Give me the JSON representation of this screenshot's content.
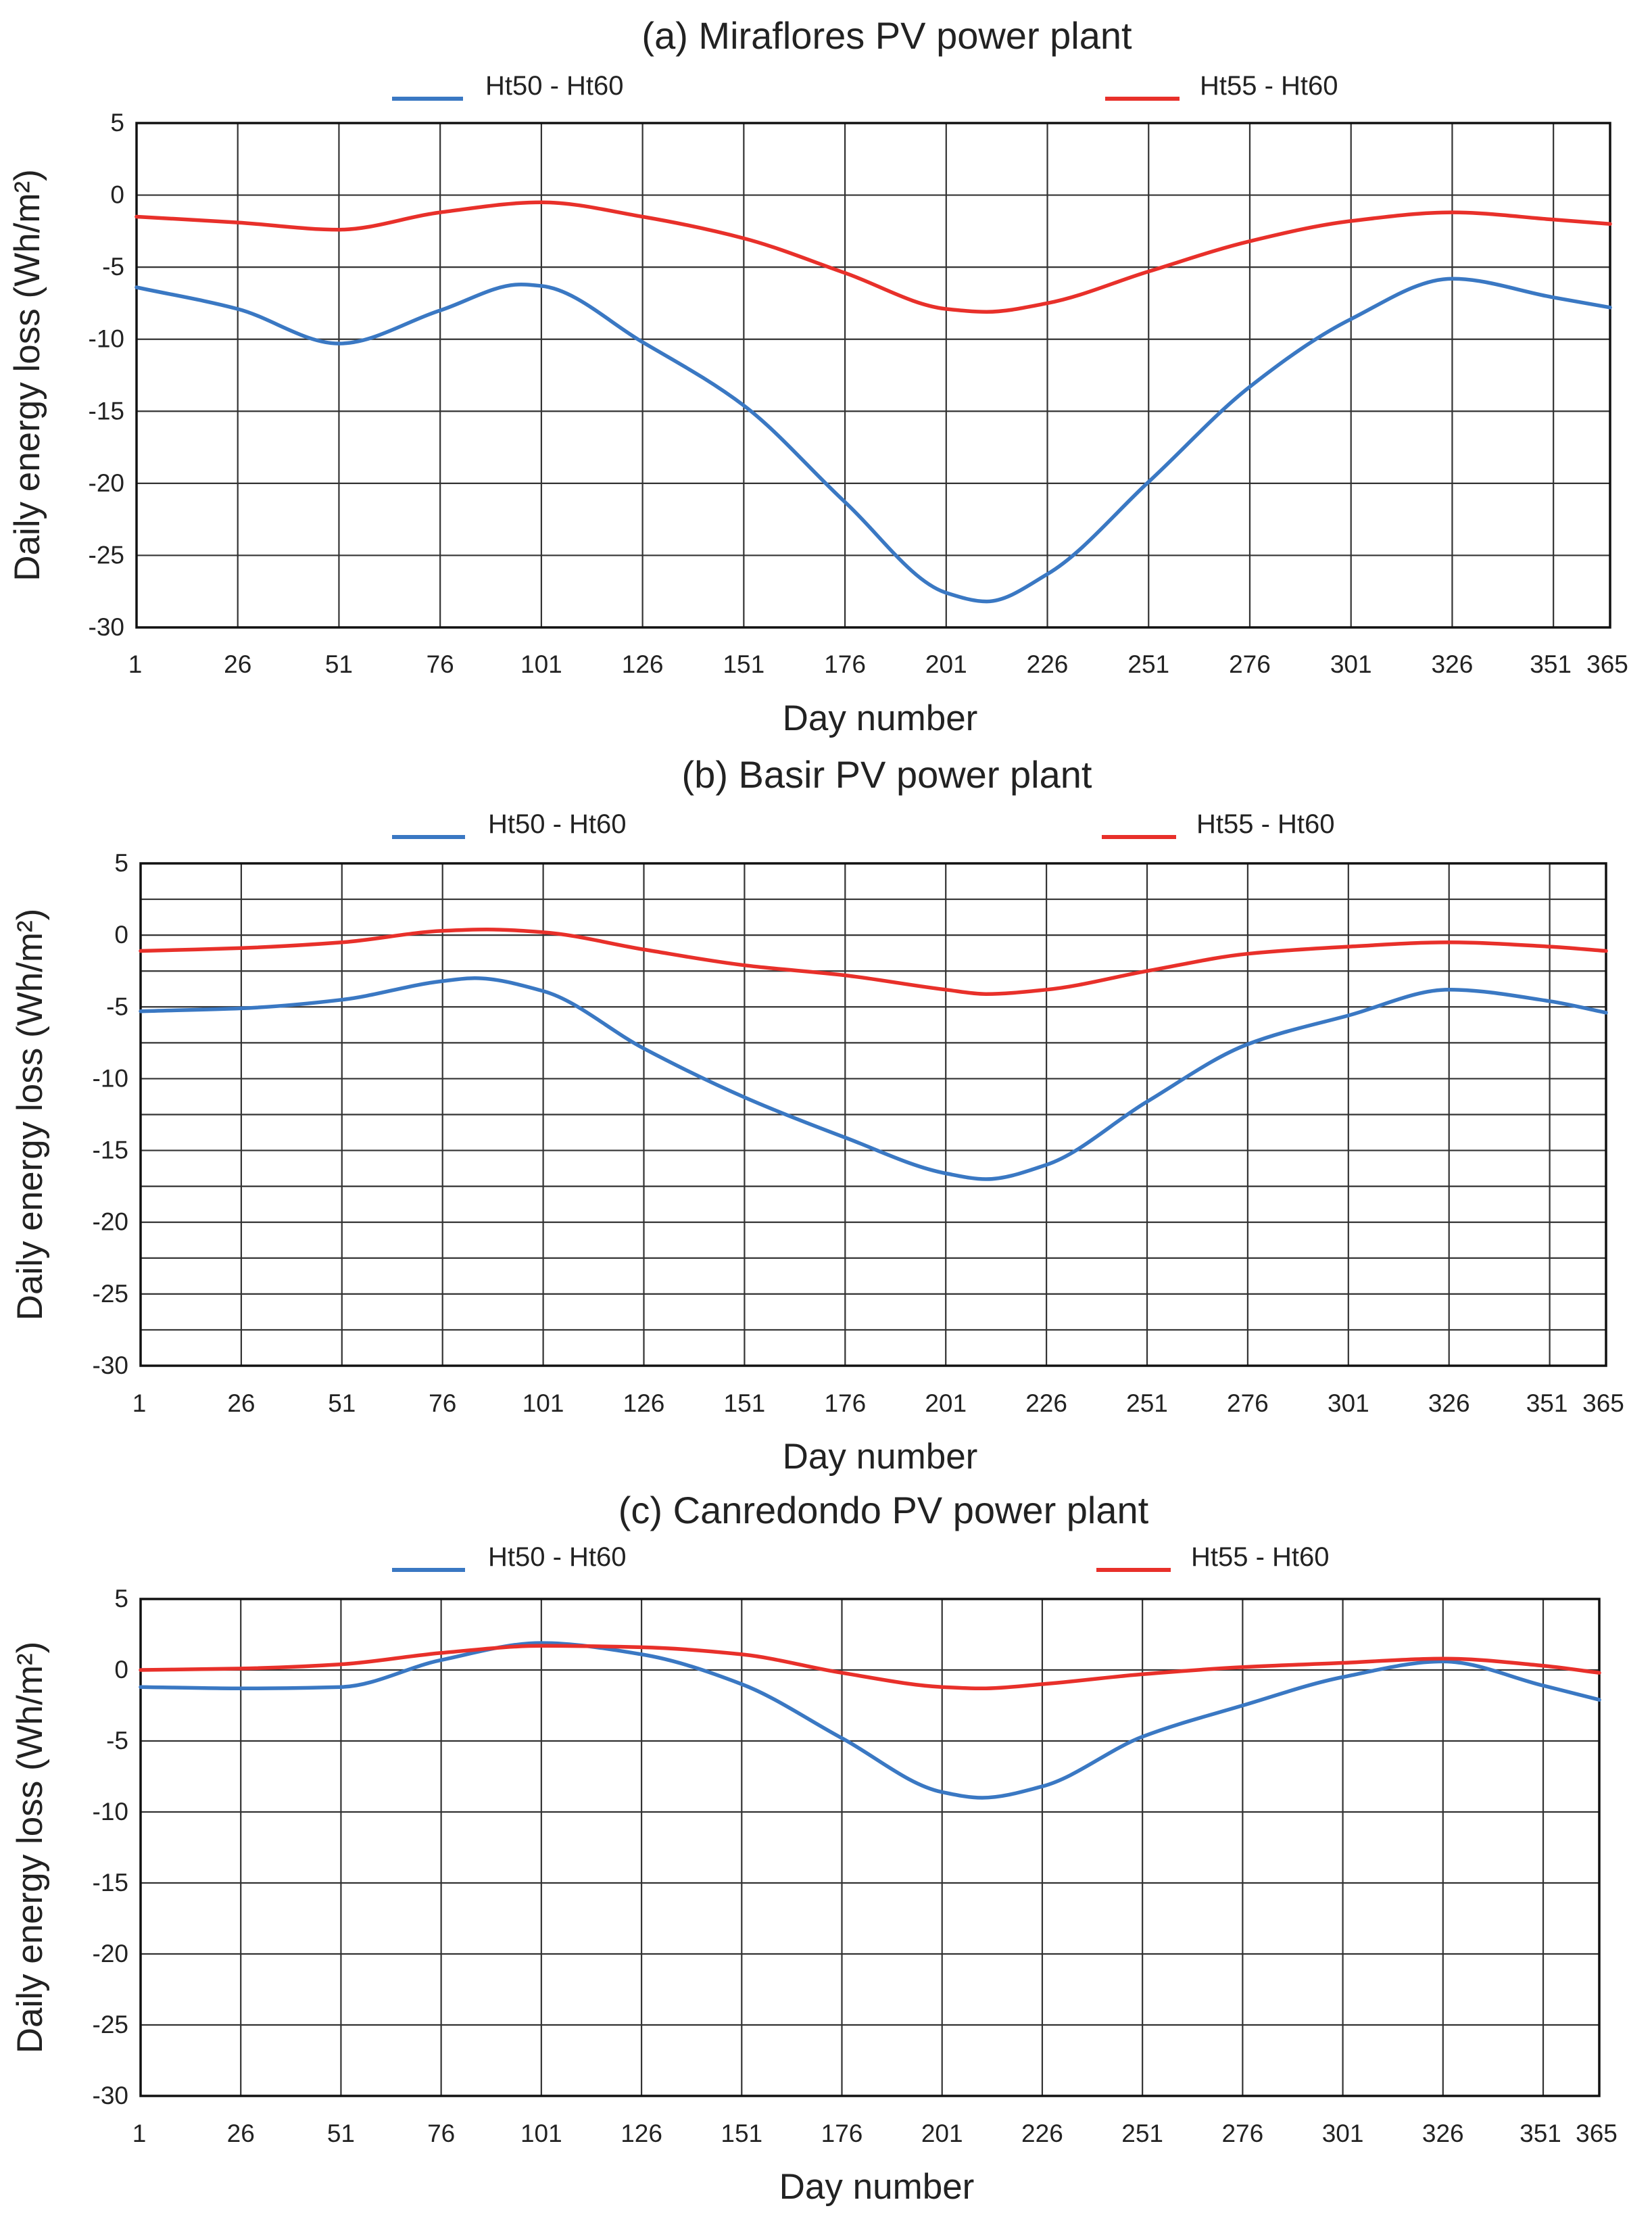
{
  "colors": {
    "series_blue": "#3a78c3",
    "series_red": "#e8302a",
    "grid": "#333333",
    "text": "#222222"
  },
  "chart_data": [
    {
      "type": "line",
      "title": "(a) Miraflores PV power plant",
      "xlabel": "Day number",
      "ylabel": "Daily energy loss (Wh/m²)",
      "xlim": [
        1,
        365
      ],
      "ylim": [
        -30,
        5
      ],
      "x_ticks": [
        1,
        26,
        51,
        76,
        101,
        126,
        151,
        176,
        201,
        226,
        251,
        276,
        301,
        326,
        351,
        365
      ],
      "x_tick_labels": [
        "1",
        "26",
        "51",
        "76",
        "101",
        "126",
        "151",
        "176",
        "201",
        "226",
        "251",
        "276",
        "301",
        "326",
        "351",
        "365"
      ],
      "y_ticks": [
        5,
        0,
        -5,
        -10,
        -15,
        -20,
        -25,
        -30
      ],
      "y_tick_labels": [
        "5",
        "0",
        "-5",
        "-10",
        "-15",
        "-20",
        "-25",
        "-30"
      ],
      "grid": true,
      "legend_position": "top",
      "series": [
        {
          "name": "Ht50 - Ht60",
          "color": "#3a78c3",
          "x": [
            1,
            26,
            51,
            76,
            96,
            101,
            126,
            151,
            176,
            201,
            211,
            226,
            251,
            276,
            301,
            326,
            351,
            365
          ],
          "values": [
            -6.4,
            -7.9,
            -10.3,
            -8.0,
            -6.2,
            -6.3,
            -10.2,
            -14.6,
            -21.3,
            -27.6,
            -28.2,
            -26.3,
            -19.9,
            -13.3,
            -8.6,
            -5.8,
            -7.1,
            -7.8
          ]
        },
        {
          "name": "Ht55 - Ht60",
          "color": "#e8302a",
          "x": [
            1,
            26,
            51,
            76,
            101,
            126,
            151,
            176,
            201,
            211,
            226,
            251,
            276,
            301,
            326,
            351,
            365
          ],
          "values": [
            -1.5,
            -1.9,
            -2.4,
            -1.2,
            -0.5,
            -1.5,
            -3.0,
            -5.4,
            -7.9,
            -8.1,
            -7.5,
            -5.3,
            -3.2,
            -1.8,
            -1.2,
            -1.7,
            -2.0
          ]
        }
      ]
    },
    {
      "type": "line",
      "title": "(b) Basir PV power plant",
      "xlabel": "Day number",
      "ylabel": "Daily energy loss (Wh/m²)",
      "xlim": [
        1,
        365
      ],
      "ylim": [
        -30,
        5
      ],
      "x_ticks": [
        1,
        26,
        51,
        76,
        101,
        126,
        151,
        176,
        201,
        226,
        251,
        276,
        301,
        326,
        351,
        365
      ],
      "x_tick_labels": [
        "1",
        "26",
        "51",
        "76",
        "101",
        "126",
        "151",
        "176",
        "201",
        "226",
        "251",
        "276",
        "301",
        "326",
        "351",
        "365"
      ],
      "y_ticks": [
        5,
        0,
        -5,
        -10,
        -15,
        -20,
        -25,
        -30
      ],
      "y_tick_labels": [
        "5",
        "0",
        "-5",
        "-10",
        "-15",
        "-20",
        "-25",
        "-30"
      ],
      "grid": true,
      "legend_position": "top",
      "series": [
        {
          "name": "Ht50 - Ht60",
          "color": "#3a78c3",
          "x": [
            1,
            26,
            51,
            76,
            84,
            101,
            126,
            151,
            176,
            201,
            211,
            226,
            251,
            276,
            301,
            326,
            351,
            365
          ],
          "values": [
            -5.3,
            -5.1,
            -4.5,
            -3.2,
            -3.0,
            -3.9,
            -7.9,
            -11.3,
            -14.1,
            -16.6,
            -17.0,
            -16.0,
            -11.6,
            -7.6,
            -5.6,
            -3.8,
            -4.6,
            -5.4
          ]
        },
        {
          "name": "Ht55 - Ht60",
          "color": "#e8302a",
          "x": [
            1,
            26,
            51,
            76,
            87,
            101,
            126,
            151,
            176,
            201,
            211,
            226,
            251,
            276,
            301,
            326,
            351,
            365
          ],
          "values": [
            -1.1,
            -0.9,
            -0.5,
            0.3,
            0.4,
            0.2,
            -1.0,
            -2.1,
            -2.8,
            -3.8,
            -4.1,
            -3.8,
            -2.5,
            -1.3,
            -0.8,
            -0.5,
            -0.8,
            -1.1
          ]
        }
      ]
    },
    {
      "type": "line",
      "title": "(c) Canredondo PV power plant",
      "xlabel": "Day number",
      "ylabel": "Daily energy loss (Wh/m²)",
      "xlim": [
        1,
        365
      ],
      "ylim": [
        -30,
        5
      ],
      "x_ticks": [
        1,
        26,
        51,
        76,
        101,
        126,
        151,
        176,
        201,
        226,
        251,
        276,
        301,
        326,
        351,
        365
      ],
      "x_tick_labels": [
        "1",
        "26",
        "51",
        "76",
        "101",
        "126",
        "151",
        "176",
        "201",
        "226",
        "251",
        "276",
        "301",
        "326",
        "351",
        "365"
      ],
      "y_ticks": [
        5,
        0,
        -5,
        -10,
        -15,
        -20,
        -25,
        -30
      ],
      "y_tick_labels": [
        "5",
        "0",
        "-5",
        "-10",
        "-15",
        "-20",
        "-25",
        "-30"
      ],
      "grid": true,
      "legend_position": "top",
      "series": [
        {
          "name": "Ht50 - Ht60",
          "color": "#3a78c3",
          "x": [
            1,
            26,
            51,
            76,
            101,
            126,
            151,
            176,
            201,
            211,
            226,
            251,
            276,
            301,
            326,
            351,
            365
          ],
          "values": [
            -1.2,
            -1.3,
            -1.2,
            0.7,
            1.9,
            1.1,
            -1.0,
            -4.8,
            -8.6,
            -9.0,
            -8.2,
            -4.7,
            -2.5,
            -0.5,
            0.6,
            -1.1,
            -2.1
          ]
        },
        {
          "name": "Ht55 - Ht60",
          "color": "#e8302a",
          "x": [
            1,
            26,
            51,
            76,
            101,
            126,
            151,
            176,
            201,
            211,
            226,
            251,
            276,
            301,
            326,
            351,
            365
          ],
          "values": [
            0.0,
            0.1,
            0.4,
            1.2,
            1.7,
            1.6,
            1.1,
            -0.2,
            -1.2,
            -1.3,
            -1.0,
            -0.3,
            0.2,
            0.5,
            0.8,
            0.3,
            -0.2
          ]
        }
      ]
    }
  ]
}
